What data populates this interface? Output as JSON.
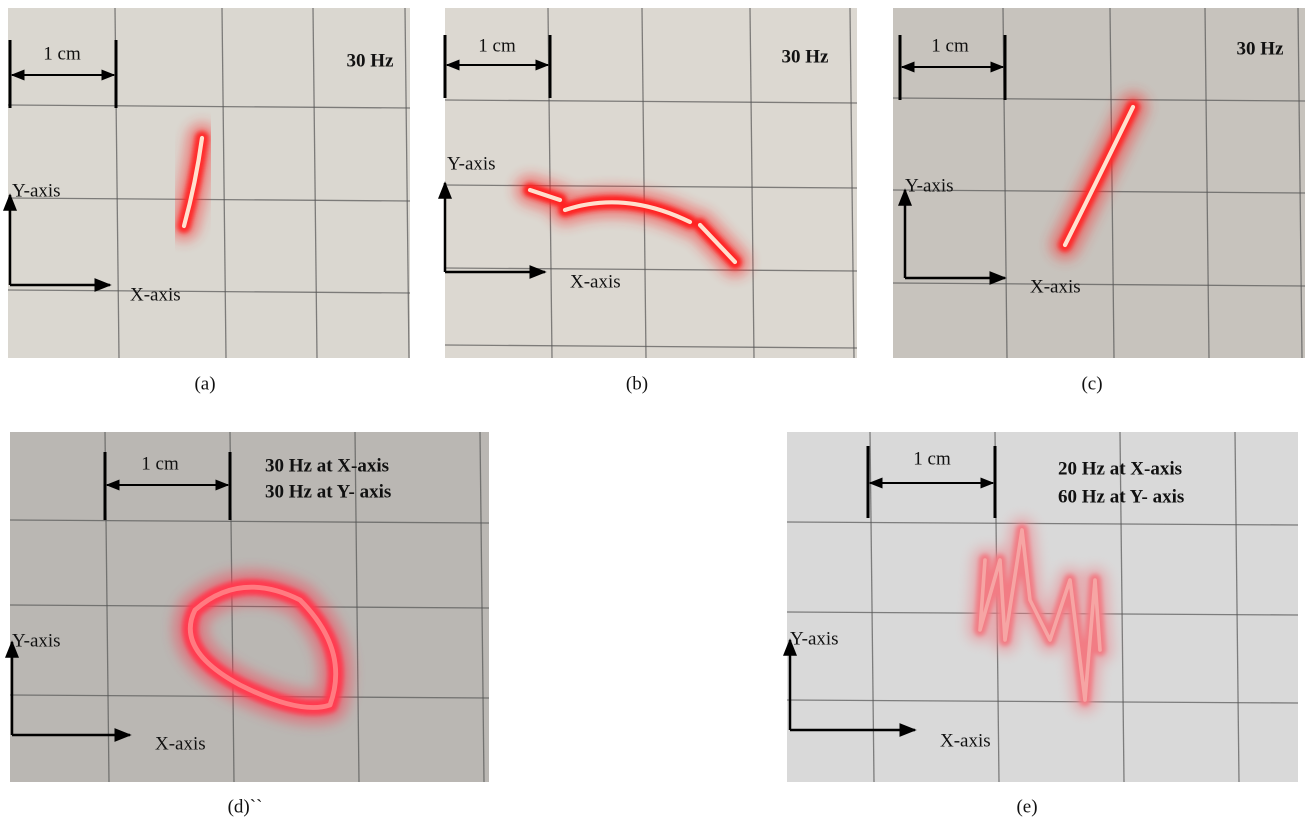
{
  "panels": [
    {
      "scale": "1 cm",
      "frequency": [
        "30 Hz"
      ],
      "y_axis": "Y-axis",
      "x_axis": "X-axis",
      "caption": "(a)"
    },
    {
      "scale": "1 cm",
      "frequency": [
        "30 Hz"
      ],
      "y_axis": "Y-axis",
      "x_axis": "X-axis",
      "caption": "(b)"
    },
    {
      "scale": "1 cm",
      "frequency": [
        "30 Hz"
      ],
      "y_axis": "Y-axis",
      "x_axis": "X-axis",
      "caption": "(c)"
    },
    {
      "scale": "1 cm",
      "frequency": [
        "30 Hz at X-axis",
        "30 Hz  at Y- axis"
      ],
      "y_axis": "Y-axis",
      "x_axis": "X-axis",
      "caption": "(d)``"
    },
    {
      "scale": "1 cm",
      "frequency": [
        "20 Hz at X-axis",
        "60 Hz  at Y- axis"
      ],
      "y_axis": "Y-axis",
      "x_axis": "X-axis",
      "caption": "(e)"
    }
  ]
}
